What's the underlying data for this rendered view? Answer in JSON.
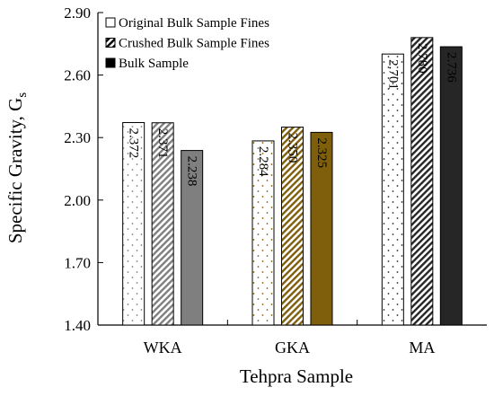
{
  "chart_data": {
    "type": "bar",
    "categories": [
      "WKA",
      "GKA",
      "MA"
    ],
    "series": [
      {
        "name": "Original Bulk Sample Fines",
        "values": [
          2.372,
          2.284,
          2.701
        ],
        "labels": [
          "2.372",
          "2.284",
          "2.701"
        ]
      },
      {
        "name": "Crushed Bulk Sample Fines",
        "values": [
          2.371,
          2.35,
          2.78
        ],
        "labels": [
          "2.371",
          "2.350",
          "2.780"
        ]
      },
      {
        "name": "Bulk Sample",
        "values": [
          2.238,
          2.325,
          2.736
        ],
        "labels": [
          "2.238",
          "2.325",
          "2.736"
        ]
      }
    ],
    "ylabel": "Specific Gravity, G",
    "ylabel_subscript": "s",
    "xlabel": "Tehpra Sample",
    "ylim": [
      1.4,
      2.9
    ],
    "yticks": [
      "1.40",
      "1.70",
      "2.00",
      "2.30",
      "2.60",
      "2.90"
    ],
    "legend_position": "top-left",
    "grid": false,
    "colors": {
      "WKA": "#7f7f7f",
      "GKA": "#7f5f0c",
      "MA": "#262626"
    }
  }
}
